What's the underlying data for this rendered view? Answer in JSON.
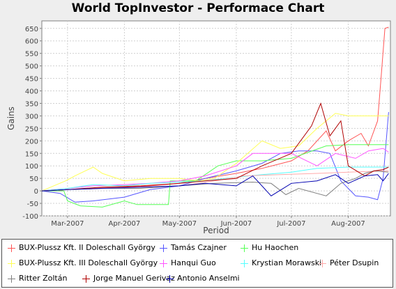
{
  "chart_data": {
    "type": "line",
    "title": "World TopInvestor - Performace Chart",
    "xlabel": "Period",
    "ylabel": "Gains",
    "ylim": [
      -100,
      680
    ],
    "y_ticks": [
      -100,
      -50,
      0,
      50,
      100,
      150,
      200,
      250,
      300,
      350,
      400,
      450,
      500,
      550,
      600,
      650
    ],
    "x_domain": [
      "2007-02-15",
      "2007-08-24"
    ],
    "x_ticks": [
      {
        "label": "Mar-2007",
        "date": "2007-03-01"
      },
      {
        "label": "Apr-2007",
        "date": "2007-04-01"
      },
      {
        "label": "May-2007",
        "date": "2007-05-01"
      },
      {
        "label": "Jun-2007",
        "date": "2007-06-01"
      },
      {
        "label": "Jul-2007",
        "date": "2007-07-01"
      },
      {
        "label": "Aug-2007",
        "date": "2007-08-01"
      }
    ],
    "grid": true,
    "legend_position": "bottom",
    "series": [
      {
        "name": "BUX-Plussz Kft. II Doleschall György",
        "color": "#ff5555",
        "points": [
          [
            "2007-02-15",
            0
          ],
          [
            "2007-03-01",
            5
          ],
          [
            "2007-03-15",
            10
          ],
          [
            "2007-04-01",
            15
          ],
          [
            "2007-04-15",
            20
          ],
          [
            "2007-05-01",
            30
          ],
          [
            "2007-05-15",
            50
          ],
          [
            "2007-06-01",
            70
          ],
          [
            "2007-06-15",
            90
          ],
          [
            "2007-07-01",
            120
          ],
          [
            "2007-07-10",
            160
          ],
          [
            "2007-07-20",
            240
          ],
          [
            "2007-07-25",
            160
          ],
          [
            "2007-08-01",
            200
          ],
          [
            "2007-08-08",
            230
          ],
          [
            "2007-08-12",
            180
          ],
          [
            "2007-08-17",
            280
          ],
          [
            "2007-08-19",
            460
          ],
          [
            "2007-08-21",
            650
          ],
          [
            "2007-08-23",
            655
          ]
        ]
      },
      {
        "name": "Tamás Czajner",
        "color": "#5555ff",
        "points": [
          [
            "2007-02-15",
            0
          ],
          [
            "2007-02-25",
            -10
          ],
          [
            "2007-03-05",
            -45
          ],
          [
            "2007-03-15",
            -40
          ],
          [
            "2007-04-01",
            -25
          ],
          [
            "2007-04-15",
            5
          ],
          [
            "2007-05-01",
            20
          ],
          [
            "2007-05-15",
            50
          ],
          [
            "2007-06-01",
            80
          ],
          [
            "2007-06-15",
            110
          ],
          [
            "2007-06-25",
            150
          ],
          [
            "2007-07-05",
            160
          ],
          [
            "2007-07-15",
            160
          ],
          [
            "2007-07-22",
            150
          ],
          [
            "2007-07-28",
            40
          ],
          [
            "2007-08-05",
            -20
          ],
          [
            "2007-08-12",
            -25
          ],
          [
            "2007-08-17",
            -35
          ],
          [
            "2007-08-20",
            50
          ],
          [
            "2007-08-23",
            315
          ]
        ]
      },
      {
        "name": "Hu Haochen",
        "color": "#55ff55",
        "points": [
          [
            "2007-02-15",
            0
          ],
          [
            "2007-02-27",
            0
          ],
          [
            "2007-03-01",
            -40
          ],
          [
            "2007-03-08",
            -60
          ],
          [
            "2007-03-20",
            -65
          ],
          [
            "2007-04-01",
            -40
          ],
          [
            "2007-04-08",
            -55
          ],
          [
            "2007-04-25",
            -55
          ],
          [
            "2007-04-26",
            40
          ],
          [
            "2007-05-10",
            40
          ],
          [
            "2007-05-22",
            100
          ],
          [
            "2007-06-01",
            120
          ],
          [
            "2007-06-15",
            120
          ],
          [
            "2007-07-01",
            130
          ],
          [
            "2007-07-20",
            180
          ],
          [
            "2007-08-01",
            185
          ],
          [
            "2007-08-23",
            185
          ]
        ]
      },
      {
        "name": "BUX-Plussz Kft. III Doleschall György",
        "color": "#ffff55",
        "points": [
          [
            "2007-02-15",
            0
          ],
          [
            "2007-02-28",
            40
          ],
          [
            "2007-03-05",
            60
          ],
          [
            "2007-03-15",
            95
          ],
          [
            "2007-03-20",
            70
          ],
          [
            "2007-04-01",
            40
          ],
          [
            "2007-04-15",
            50
          ],
          [
            "2007-05-01",
            50
          ],
          [
            "2007-05-12",
            40
          ],
          [
            "2007-05-20",
            50
          ],
          [
            "2007-06-01",
            110
          ],
          [
            "2007-06-15",
            200
          ],
          [
            "2007-06-25",
            170
          ],
          [
            "2007-07-05",
            180
          ],
          [
            "2007-07-15",
            250
          ],
          [
            "2007-07-25",
            310
          ],
          [
            "2007-08-01",
            300
          ],
          [
            "2007-08-23",
            300
          ]
        ]
      },
      {
        "name": "Hanqui Guo",
        "color": "#ff55ff",
        "points": [
          [
            "2007-02-15",
            0
          ],
          [
            "2007-03-01",
            10
          ],
          [
            "2007-03-15",
            20
          ],
          [
            "2007-04-01",
            25
          ],
          [
            "2007-04-15",
            30
          ],
          [
            "2007-05-01",
            40
          ],
          [
            "2007-05-15",
            60
          ],
          [
            "2007-06-01",
            100
          ],
          [
            "2007-06-10",
            150
          ],
          [
            "2007-07-01",
            150
          ],
          [
            "2007-07-15",
            100
          ],
          [
            "2007-07-25",
            150
          ],
          [
            "2007-08-05",
            130
          ],
          [
            "2007-08-12",
            160
          ],
          [
            "2007-08-20",
            170
          ],
          [
            "2007-08-23",
            155
          ]
        ]
      },
      {
        "name": "Krystian Morawski",
        "color": "#55ffff",
        "points": [
          [
            "2007-02-15",
            0
          ],
          [
            "2007-03-01",
            10
          ],
          [
            "2007-03-15",
            25
          ],
          [
            "2007-04-01",
            20
          ],
          [
            "2007-04-15",
            30
          ],
          [
            "2007-05-01",
            35
          ],
          [
            "2007-05-15",
            40
          ],
          [
            "2007-06-01",
            55
          ],
          [
            "2007-06-15",
            65
          ],
          [
            "2007-07-01",
            75
          ],
          [
            "2007-07-15",
            90
          ],
          [
            "2007-08-01",
            95
          ],
          [
            "2007-08-23",
            95
          ]
        ]
      },
      {
        "name": "Péter Dsupin",
        "color": "#ffaaaa",
        "points": [
          [
            "2007-02-15",
            0
          ],
          [
            "2007-03-01",
            5
          ],
          [
            "2007-03-20",
            10
          ],
          [
            "2007-04-10",
            15
          ],
          [
            "2007-05-01",
            20
          ],
          [
            "2007-05-20",
            40
          ],
          [
            "2007-06-05",
            60
          ],
          [
            "2007-06-25",
            65
          ],
          [
            "2007-07-15",
            70
          ],
          [
            "2007-08-01",
            75
          ],
          [
            "2007-08-23",
            80
          ]
        ]
      },
      {
        "name": "Ritter Zoltán",
        "color": "#808080",
        "points": [
          [
            "2007-02-15",
            0
          ],
          [
            "2007-03-01",
            5
          ],
          [
            "2007-03-20",
            10
          ],
          [
            "2007-04-10",
            10
          ],
          [
            "2007-05-01",
            20
          ],
          [
            "2007-05-20",
            30
          ],
          [
            "2007-06-10",
            35
          ],
          [
            "2007-06-20",
            30
          ],
          [
            "2007-06-28",
            -15
          ],
          [
            "2007-07-05",
            10
          ],
          [
            "2007-07-20",
            -20
          ],
          [
            "2007-07-28",
            30
          ],
          [
            "2007-08-05",
            50
          ],
          [
            "2007-08-10",
            70
          ],
          [
            "2007-08-15",
            80
          ],
          [
            "2007-08-23",
            75
          ]
        ]
      },
      {
        "name": "Jorge Manuel Gerivaz",
        "color": "#b00000",
        "points": [
          [
            "2007-02-15",
            0
          ],
          [
            "2007-03-01",
            5
          ],
          [
            "2007-03-20",
            15
          ],
          [
            "2007-04-10",
            20
          ],
          [
            "2007-05-01",
            30
          ],
          [
            "2007-05-15",
            40
          ],
          [
            "2007-06-01",
            50
          ],
          [
            "2007-06-15",
            100
          ],
          [
            "2007-07-01",
            150
          ],
          [
            "2007-07-12",
            260
          ],
          [
            "2007-07-17",
            350
          ],
          [
            "2007-07-22",
            220
          ],
          [
            "2007-07-28",
            280
          ],
          [
            "2007-08-01",
            100
          ],
          [
            "2007-08-10",
            60
          ],
          [
            "2007-08-15",
            80
          ],
          [
            "2007-08-20",
            85
          ],
          [
            "2007-08-23",
            95
          ]
        ]
      },
      {
        "name": "Antonio Anselmi",
        "color": "#0000b0",
        "points": [
          [
            "2007-02-15",
            0
          ],
          [
            "2007-03-01",
            5
          ],
          [
            "2007-03-20",
            10
          ],
          [
            "2007-04-10",
            15
          ],
          [
            "2007-05-01",
            20
          ],
          [
            "2007-05-15",
            30
          ],
          [
            "2007-06-01",
            20
          ],
          [
            "2007-06-10",
            60
          ],
          [
            "2007-06-20",
            -20
          ],
          [
            "2007-07-01",
            30
          ],
          [
            "2007-07-15",
            40
          ],
          [
            "2007-07-25",
            65
          ],
          [
            "2007-08-01",
            30
          ],
          [
            "2007-08-10",
            60
          ],
          [
            "2007-08-17",
            65
          ],
          [
            "2007-08-20",
            40
          ],
          [
            "2007-08-23",
            70
          ]
        ]
      }
    ]
  }
}
